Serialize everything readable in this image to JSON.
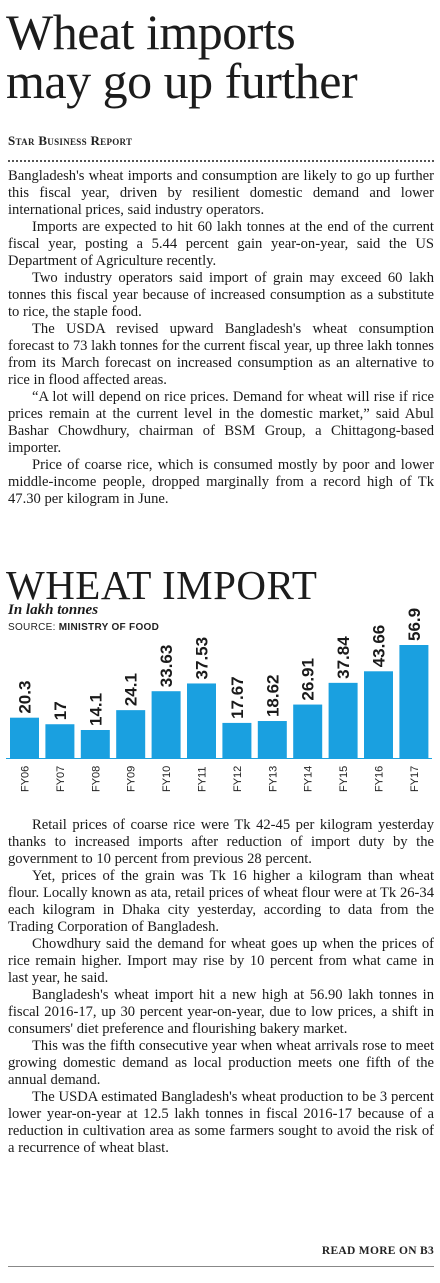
{
  "article": {
    "headline_line1": "Wheat imports",
    "headline_line2": "may go up further",
    "byline": "Star Business Report",
    "paragraphs_top": [
      "Bangladesh's wheat imports and consumption are likely to go up further this fiscal year, driven by resilient domestic demand and lower international prices, said industry operators.",
      "Imports are expected to hit 60 lakh tonnes at the end of the current fiscal year, posting a 5.44 percent gain year-on-year, said the US Department of Agriculture recently.",
      "Two industry operators said import of grain may exceed 60 lakh tonnes this fiscal year because of increased consumption as a substitute to rice, the staple food.",
      "The USDA revised upward Bangladesh's wheat consumption forecast to 73 lakh tonnes for the current fiscal year, up three lakh tonnes from its March forecast on increased consumption as an alternative to rice in flood affected areas.",
      "“A lot will depend on rice prices. Demand for wheat will rise if rice prices remain at the current level in the domestic market,” said Abul Bashar Chowdhury, chairman of BSM Group, a Chittagong-based importer.",
      "Price of coarse rice, which is consumed mostly by poor and lower middle-income people, dropped marginally from a record high of Tk 47.30 per kilogram in June."
    ],
    "paragraphs_bottom": [
      "Retail prices of coarse rice were Tk 42-45 per kilogram yesterday thanks to increased imports after reduction of import duty by the government to 10 percent from previous 28 percent.",
      "Yet, prices of the grain was Tk 16 higher a kilogram than wheat flour. Locally known as ata, retail prices of wheat flour were at Tk 26-34 each kilogram in Dhaka city yesterday, according to data from the Trading Corporation of Bangladesh.",
      "Chowdhury said the demand for wheat goes up when the prices of rice remain higher. Import may rise by 10 percent from what came in last year, he said.",
      "Bangladesh's wheat import hit a new high at 56.90 lakh tonnes in fiscal 2016-17, up 30 percent year-on-year, due to low prices, a shift in consumers' diet preference and flourishing bakery market.",
      "This was the fifth consecutive year when wheat arrivals rose to meet growing domestic demand as local production meets one fifth of the annual demand.",
      "The USDA estimated Bangladesh's wheat production to be 3 percent lower year-on-year at 12.5 lakh tonnes in fiscal 2016-17 because of a reduction in cultivation area as some farmers sought to avoid the risk of a recurrence of wheat blast."
    ],
    "read_more": "READ MORE ON B3"
  },
  "chart_data": {
    "type": "bar",
    "title": "WHEAT IMPORT",
    "subtitle": "In lakh tonnes",
    "source_label": "SOURCE:",
    "source_name": "MINISTRY OF FOOD",
    "categories": [
      "FY06",
      "FY07",
      "FY08",
      "FY09",
      "FY10",
      "FY11",
      "FY12",
      "FY13",
      "FY14",
      "FY15",
      "FY16",
      "FY17"
    ],
    "values": [
      20.3,
      17,
      14.1,
      24.1,
      33.63,
      37.53,
      17.67,
      18.62,
      26.91,
      37.84,
      43.66,
      56.9
    ],
    "value_labels": [
      "20.3",
      "17",
      "14.1",
      "24.1",
      "33.63",
      "37.53",
      "17.67",
      "18.62",
      "26.91",
      "37.84",
      "43.66",
      "56.9"
    ],
    "ylim": [
      0,
      60
    ],
    "grid": false,
    "bar_color": "#1aa0e0",
    "axis_color": "#1aa0e0"
  }
}
